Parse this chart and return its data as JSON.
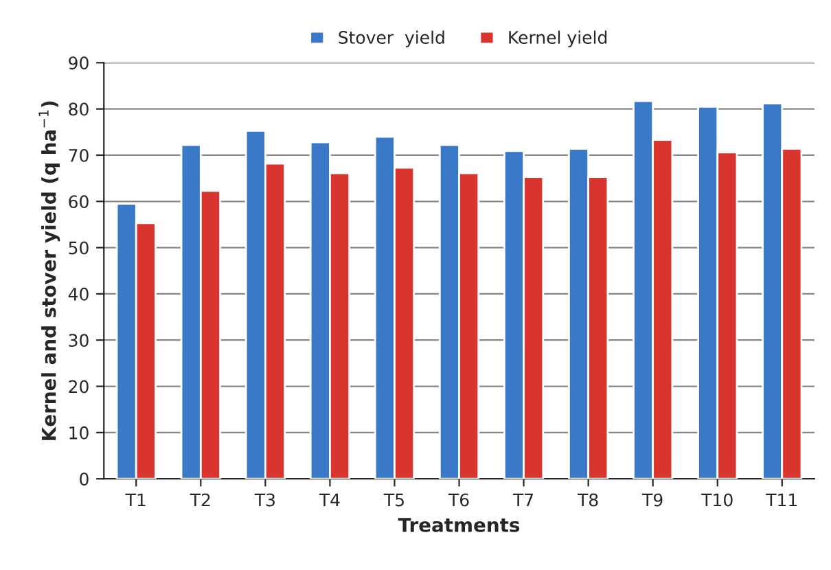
{
  "chart_data": {
    "type": "bar",
    "xlabel": "Treatments",
    "ylabel": "Kernel and stover yield (q ha$^{−1}$)",
    "categories": [
      "T1",
      "T2",
      "T3",
      "T4",
      "T5",
      "T6",
      "T7",
      "T8",
      "T9",
      "T10",
      "T11"
    ],
    "series": [
      {
        "name": "Stover  yield",
        "color": "#3a78c8",
        "values": [
          59.5,
          72.2,
          75.3,
          72.8,
          74.0,
          72.2,
          70.9,
          71.4,
          81.7,
          80.5,
          81.2
        ]
      },
      {
        "name": "Kernel yield",
        "color": "#d8352e",
        "values": [
          55.3,
          62.3,
          68.2,
          66.1,
          67.3,
          66.1,
          65.3,
          65.3,
          73.3,
          70.6,
          71.4
        ]
      }
    ],
    "ylim": [
      0,
      90
    ],
    "yticks": [
      0,
      10,
      20,
      30,
      40,
      50,
      60,
      70,
      80,
      90
    ],
    "grid": "y",
    "legend": "top"
  }
}
